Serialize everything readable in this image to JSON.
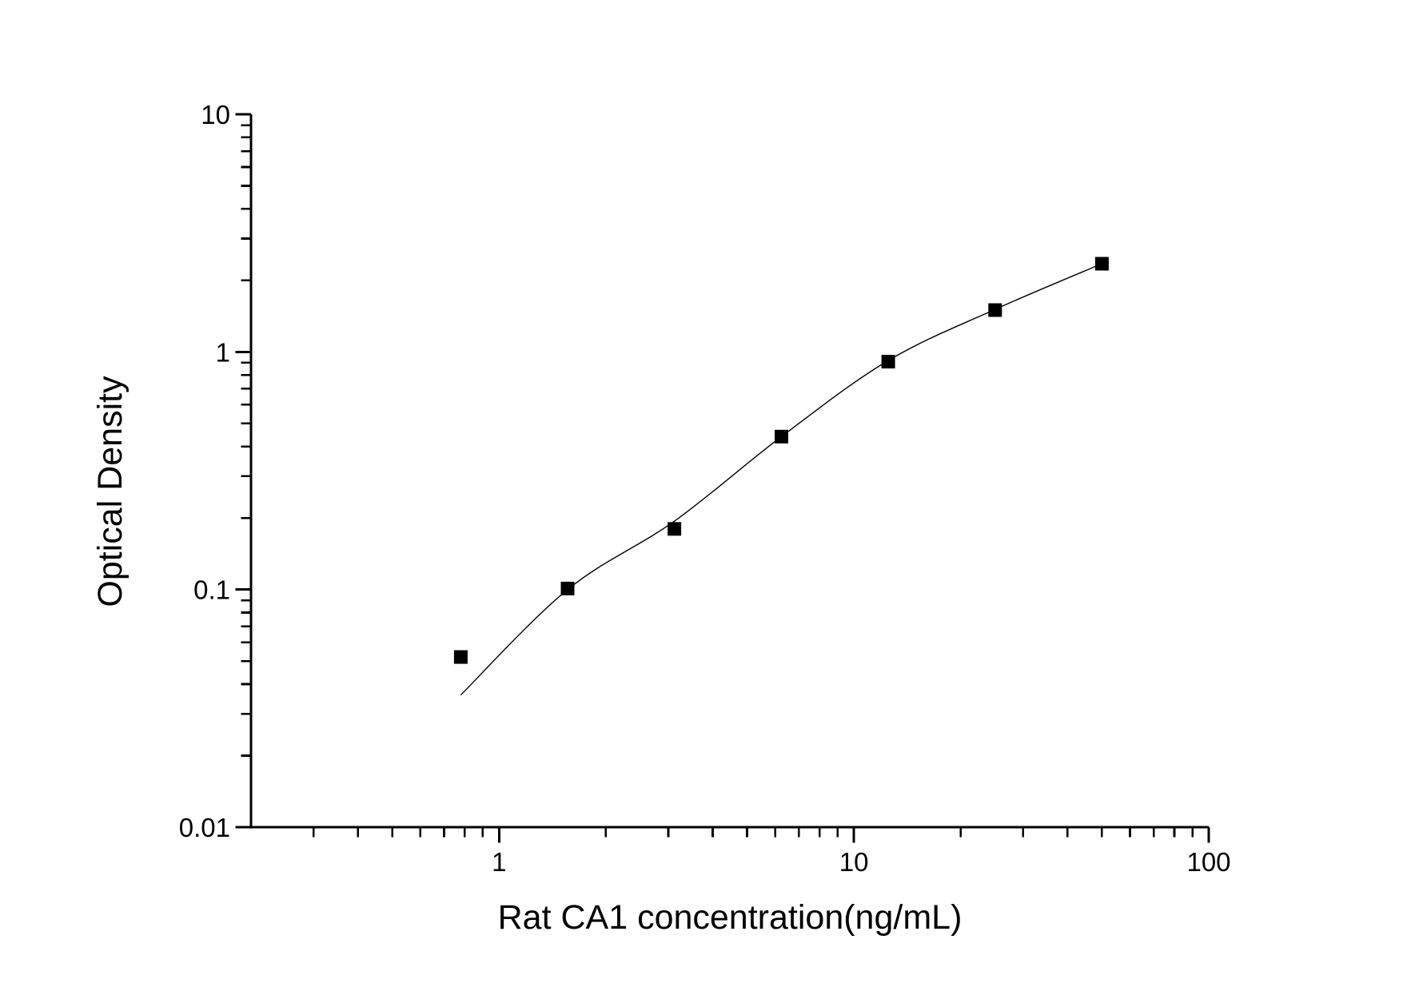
{
  "figure": {
    "background": "#ffffff",
    "foreground": "#000000"
  },
  "chart_data": {
    "type": "scatter",
    "title": "",
    "xlabel": "Rat CA1 concentration(ng/mL)",
    "ylabel": "Optical Density",
    "x_scale": "log",
    "y_scale": "log",
    "xlim": [
      0.2,
      100
    ],
    "ylim": [
      0.01,
      10
    ],
    "grid": false,
    "legend": null,
    "x_major_ticks": [
      {
        "value": 1,
        "label": "1"
      },
      {
        "value": 10,
        "label": "10"
      },
      {
        "value": 100,
        "label": "100"
      }
    ],
    "y_major_ticks": [
      {
        "value": 10,
        "label": "10"
      },
      {
        "value": 1,
        "label": "1"
      },
      {
        "value": 0.1,
        "label": "0.1"
      },
      {
        "value": 0.01,
        "label": "0.01"
      }
    ],
    "series": [
      {
        "name": "standards",
        "marker": "filled-square",
        "marker_color": "#000000",
        "marker_size_px": 17,
        "points": [
          {
            "x": 0.78,
            "y": 0.052
          },
          {
            "x": 1.56,
            "y": 0.101
          },
          {
            "x": 3.12,
            "y": 0.18
          },
          {
            "x": 6.25,
            "y": 0.44
          },
          {
            "x": 12.5,
            "y": 0.91
          },
          {
            "x": 25,
            "y": 1.5
          },
          {
            "x": 50,
            "y": 2.35
          }
        ]
      }
    ],
    "fit_curve": {
      "name": "4pl-fit-line",
      "color": "#000000",
      "points": [
        {
          "x": 0.78,
          "y": 0.036
        },
        {
          "x": 1.56,
          "y": 0.1
        },
        {
          "x": 3.12,
          "y": 0.194
        },
        {
          "x": 6.25,
          "y": 0.44
        },
        {
          "x": 12.5,
          "y": 0.92
        },
        {
          "x": 25,
          "y": 1.51
        },
        {
          "x": 50,
          "y": 2.35
        }
      ]
    }
  }
}
